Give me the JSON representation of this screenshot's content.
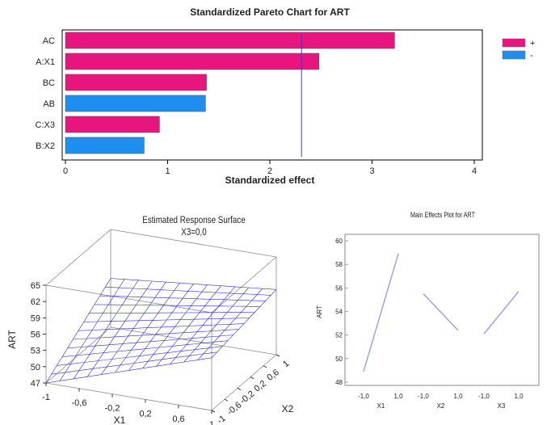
{
  "colors": {
    "positive": "#e8157e",
    "negative": "#1e8ff0",
    "refline": "#3b3bd6",
    "surface": "#2a2ae0",
    "main_effect": "#9a9af0",
    "axis": "#000000",
    "box": "#888888"
  },
  "chart_data": [
    {
      "type": "bar",
      "orientation": "horizontal",
      "title": "Standardized Pareto Chart for ART",
      "xlabel": "Standardized effect",
      "categories": [
        "AC",
        "A:X1",
        "BC",
        "AB",
        "C:X3",
        "B:X2"
      ],
      "values": [
        3.22,
        2.48,
        1.38,
        1.37,
        0.92,
        0.77
      ],
      "signs": [
        "+",
        "+",
        "+",
        "-",
        "+",
        "-"
      ],
      "reference_line": 2.31,
      "xlim": [
        0,
        4
      ],
      "xticks": [
        "0",
        "1",
        "2",
        "3",
        "4"
      ],
      "legend": {
        "position": "right",
        "entries": [
          {
            "label": "+",
            "color": "#e8157e"
          },
          {
            "label": "-",
            "color": "#1e8ff0"
          }
        ]
      },
      "grid": false
    },
    {
      "type": "surface",
      "title": "Estimated Response Surface",
      "subtitle": "X3=0,0",
      "xlabel": "X1",
      "ylabel": "X2",
      "zlabel": "ART",
      "xlim": [
        -1,
        1
      ],
      "ylim": [
        -1,
        1
      ],
      "zlim": [
        47,
        65
      ],
      "xticks": [
        "-1",
        "-0,6",
        "-0,2",
        "0,2",
        "0,6",
        "1"
      ],
      "yticks": [
        "-1",
        "-0,6",
        "-0,2",
        "0,2",
        "0,6",
        "1"
      ],
      "zticks": [
        "47",
        "50",
        "53",
        "56",
        "59",
        "62",
        "65"
      ],
      "grid_lines": 13,
      "corner_values": {
        "x1_low_x2_low": 47.0,
        "x1_high_x2_low": 56.7,
        "x1_low_x2_high": 56.0,
        "x1_high_x2_high": 59.0
      }
    },
    {
      "type": "line",
      "title": "Main Effects Plot for ART",
      "ylabel": "ART",
      "ylim": [
        48,
        60
      ],
      "yticks": [
        "48",
        "50",
        "52",
        "54",
        "56",
        "58",
        "60"
      ],
      "factors": [
        {
          "name": "X1",
          "levels": [
            "-1,0",
            "1,0"
          ],
          "values": [
            48.9,
            58.9
          ]
        },
        {
          "name": "X2",
          "levels": [
            "-1,0",
            "1,0"
          ],
          "values": [
            55.5,
            52.4
          ]
        },
        {
          "name": "X3",
          "levels": [
            "-1,0",
            "1,0"
          ],
          "values": [
            52.1,
            55.7
          ]
        }
      ]
    }
  ]
}
